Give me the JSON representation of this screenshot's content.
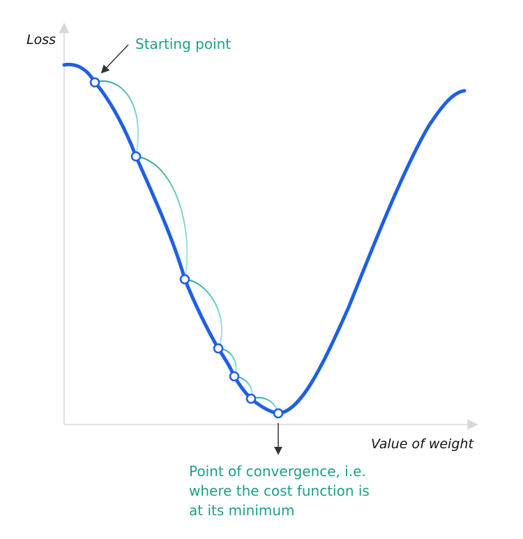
{
  "axes": {
    "y_label": "Loss",
    "x_label": "Value of weight"
  },
  "annotations": {
    "start_label": "Starting point",
    "convergence_label_lines": [
      "Point of convergence, i.e.",
      "where the cost function is",
      "at its minimum"
    ]
  },
  "colors": {
    "curve": "#1f5fe6",
    "steps": "#8fe0d4",
    "steps_dark": "#1d9e8c",
    "axis": "#d7d7d7",
    "arrow": "#333333",
    "point_fill": "#ffffff"
  }
}
